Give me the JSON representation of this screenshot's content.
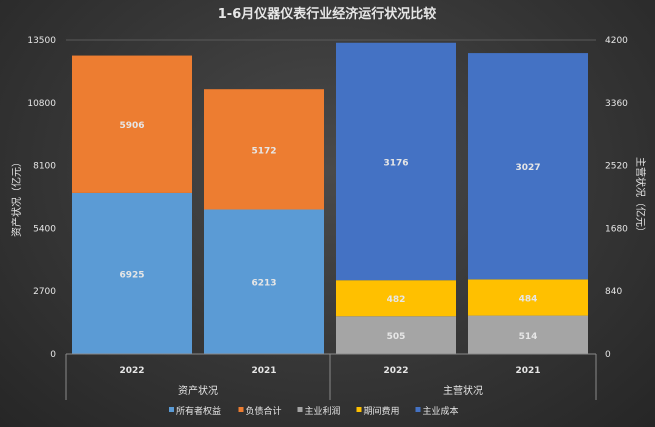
{
  "chart_data": {
    "type": "bar",
    "stacked": true,
    "title": "1-6月仪器仪表行业经济运行状况比较",
    "ylabel_left": "资产状况（亿元）",
    "ylabel_right": "主营状况（亿元）",
    "ylim_left": [
      0,
      13500
    ],
    "ylim_right": [
      0,
      4200
    ],
    "yticks_left": [
      0,
      2700,
      5400,
      8100,
      10800,
      13500
    ],
    "yticks_right": [
      0,
      840,
      1680,
      2520,
      3360,
      4200
    ],
    "grid": false,
    "legend_position": "bottom",
    "groups": [
      {
        "label": "资产状况",
        "axis": "left",
        "categories": [
          "2022",
          "2021"
        ],
        "series": [
          {
            "name": "所有者权益",
            "color": "#5b9bd5",
            "values": [
              6925,
              6213
            ]
          },
          {
            "name": "负债合计",
            "color": "#ed7d31",
            "values": [
              5906,
              5172
            ]
          }
        ]
      },
      {
        "label": "主营状况",
        "axis": "right",
        "categories": [
          "2022",
          "2021"
        ],
        "series": [
          {
            "name": "主业利润",
            "color": "#a5a5a5",
            "values": [
              505,
              514
            ]
          },
          {
            "name": "期间费用",
            "color": "#ffc000",
            "values": [
              482,
              484
            ]
          },
          {
            "name": "主业成本",
            "color": "#4472c4",
            "values": [
              3176,
              3027
            ]
          }
        ]
      }
    ],
    "legend": [
      {
        "name": "所有者权益",
        "color": "#5b9bd5"
      },
      {
        "name": "负债合计",
        "color": "#ed7d31"
      },
      {
        "name": "主业利润",
        "color": "#a5a5a5"
      },
      {
        "name": "期间费用",
        "color": "#ffc000"
      },
      {
        "name": "主业成本",
        "color": "#4472c4"
      }
    ]
  }
}
